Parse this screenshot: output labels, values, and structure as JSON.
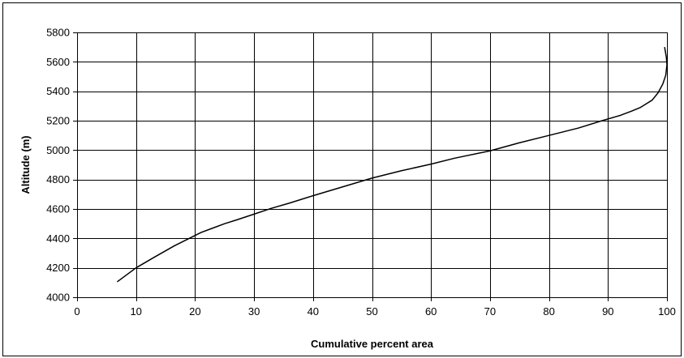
{
  "chart_data": {
    "type": "line",
    "title": "",
    "xlabel": "Cumulative percent area",
    "ylabel": "Altitude (m)",
    "xlim": [
      0,
      100
    ],
    "ylim": [
      4000,
      5800
    ],
    "x_ticks": [
      "0",
      "10",
      "20",
      "30",
      "40",
      "50",
      "60",
      "70",
      "80",
      "90",
      "100"
    ],
    "y_ticks": [
      "4000",
      "4200",
      "4400",
      "4600",
      "4800",
      "5000",
      "5200",
      "5400",
      "5600",
      "5800"
    ],
    "grid": true,
    "legend": "none",
    "line_color": "#000000",
    "series": [
      {
        "x": [
          6.8,
          10,
          13,
          16.5,
          19.5,
          21,
          23,
          25,
          27,
          30,
          33,
          36,
          40,
          45,
          50,
          55,
          60,
          64,
          70,
          75,
          80,
          85,
          89,
          92,
          94,
          95.5,
          96.5,
          97.5,
          98.5,
          99.3,
          99.8,
          100,
          99.9,
          99.6
        ],
        "y": [
          4105,
          4200,
          4270,
          4350,
          4410,
          4440,
          4470,
          4500,
          4525,
          4565,
          4605,
          4640,
          4690,
          4750,
          4810,
          4860,
          4905,
          4945,
          4995,
          5050,
          5100,
          5150,
          5200,
          5235,
          5265,
          5290,
          5315,
          5340,
          5390,
          5450,
          5510,
          5580,
          5630,
          5700
        ]
      }
    ]
  }
}
